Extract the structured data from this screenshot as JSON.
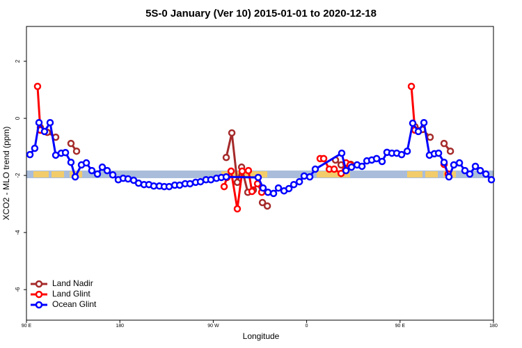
{
  "chart_data": {
    "type": "line",
    "title": "5S-0 January (Ver 10)   2015-01-01 to 2020-12-18",
    "x_label": "Longitude",
    "y_label": "XCO2 - MLO trend (ppm)",
    "xlim": [
      90,
      540
    ],
    "ylim": [
      -7.07,
      3.22
    ],
    "xticks": [
      {
        "value": 90,
        "label": "90 E"
      },
      {
        "value": 180,
        "label": "180"
      },
      {
        "value": 270,
        "label": "90 W"
      },
      {
        "value": 360,
        "label": "0"
      },
      {
        "value": 450,
        "label": "90 E"
      },
      {
        "value": 540,
        "label": "180"
      }
    ],
    "yticks": [
      2,
      0,
      -2,
      -4,
      -6
    ],
    "legend": "bottom-left",
    "series": [
      {
        "name": "Land Nadir",
        "color": "#a52a2a",
        "x": [
          103.4,
          110.1,
          118.2,
          null,
          132.9,
          138.3,
          null,
          282.5,
          287.9,
          293.2,
          297.3,
          303.3,
          308.6,
          null,
          317.4,
          322.1,
          null,
          387.8,
          393.2,
          397.9,
          402.5,
          null,
          464.3,
          471.6,
          479.0,
          null,
          492.4,
          498.5
        ],
        "values": [
          -0.32,
          -0.49,
          -0.66,
          null,
          -0.88,
          -1.15,
          null,
          -1.37,
          -0.51,
          -2.24,
          -1.71,
          -2.59,
          -2.51,
          null,
          -2.95,
          -3.07,
          null,
          -1.46,
          -1.63,
          -1.59,
          -1.61,
          null,
          -0.29,
          -0.39,
          -0.66,
          null,
          -0.88,
          -1.15
        ]
      },
      {
        "name": "Land Glint",
        "color": "#ff0000",
        "x": [
          100.7,
          103.4,
          null,
          280.5,
          283.2,
          287.2,
          293.2,
          297.9,
          303.9,
          307.3,
          312.7,
          316.7,
          null,
          373.0,
          376.4,
          381.8,
          386.5,
          393.2,
          397.9,
          401.9,
          null,
          460.9,
          464.3,
          null,
          492.4,
          496.4
        ],
        "values": [
          1.12,
          -0.41,
          null,
          -2.39,
          -2.07,
          -1.85,
          -3.17,
          -1.85,
          -1.83,
          -2.56,
          -2.29,
          -2.59,
          null,
          -1.41,
          -1.41,
          -1.78,
          -1.78,
          -1.93,
          -1.56,
          -1.63,
          null,
          1.12,
          -0.41,
          null,
          -1.61,
          -1.95
        ]
      },
      {
        "name": "Ocean Glint",
        "color": "#0000ff",
        "x": [
          93.4,
          98.0,
          102.1,
          107.4,
          112.8,
          118.2,
          123.5,
          127.6,
          132.9,
          137.0,
          143.0,
          147.7,
          153.0,
          158.4,
          163.1,
          167.8,
          173.2,
          178.5,
          183.2,
          187.9,
          193.3,
          198.0,
          203.3,
          208.0,
          212.7,
          218.1,
          222.8,
          227.5,
          232.9,
          237.6,
          242.9,
          247.6,
          253.0,
          257.7,
          263.0,
          267.7,
          273.1,
          277.8,
          282.5,
          313.3,
          318.0,
          322.7,
          328.1,
          332.8,
          338.2,
          342.9,
          347.6,
          353.0,
          357.6,
          363.0,
          368.3,
          393.8,
          397.9,
          403.2,
          408.6,
          413.3,
          418.0,
          422.7,
          427.4,
          432.7,
          437.4,
          442.1,
          446.8,
          451.5,
          456.9,
          462.2,
          467.6,
          473.0,
          478.3,
          483.0,
          487.1,
          492.4,
          497.1,
          501.8,
          507.2,
          512.5,
          517.2,
          522.6,
          527.3,
          532.7,
          538.0
        ],
        "values": [
          -1.27,
          -1.05,
          -0.15,
          -0.46,
          -0.15,
          -1.29,
          -1.22,
          -1.2,
          -1.54,
          -2.05,
          -1.63,
          -1.56,
          -1.83,
          -1.95,
          -1.71,
          -1.83,
          -1.98,
          -2.15,
          -2.1,
          -2.12,
          -2.17,
          -2.27,
          -2.32,
          -2.32,
          -2.37,
          -2.37,
          -2.39,
          -2.39,
          -2.34,
          -2.34,
          -2.29,
          -2.29,
          -2.24,
          -2.22,
          -2.15,
          -2.15,
          -2.1,
          -2.07,
          -2.05,
          -2.07,
          -2.44,
          -2.59,
          -2.63,
          -2.44,
          -2.54,
          -2.46,
          -2.32,
          -2.22,
          -2.02,
          -2.05,
          -1.78,
          -1.22,
          -1.83,
          -1.71,
          -1.63,
          -1.68,
          -1.49,
          -1.46,
          -1.41,
          -1.51,
          -1.19,
          -1.22,
          -1.22,
          -1.27,
          -1.15,
          -0.17,
          -0.46,
          -0.15,
          -1.29,
          -1.24,
          -1.22,
          -1.54,
          -2.05,
          -1.63,
          -1.56,
          -1.83,
          -1.95,
          -1.68,
          -1.83,
          -1.95,
          -2.15
        ]
      }
    ]
  }
}
